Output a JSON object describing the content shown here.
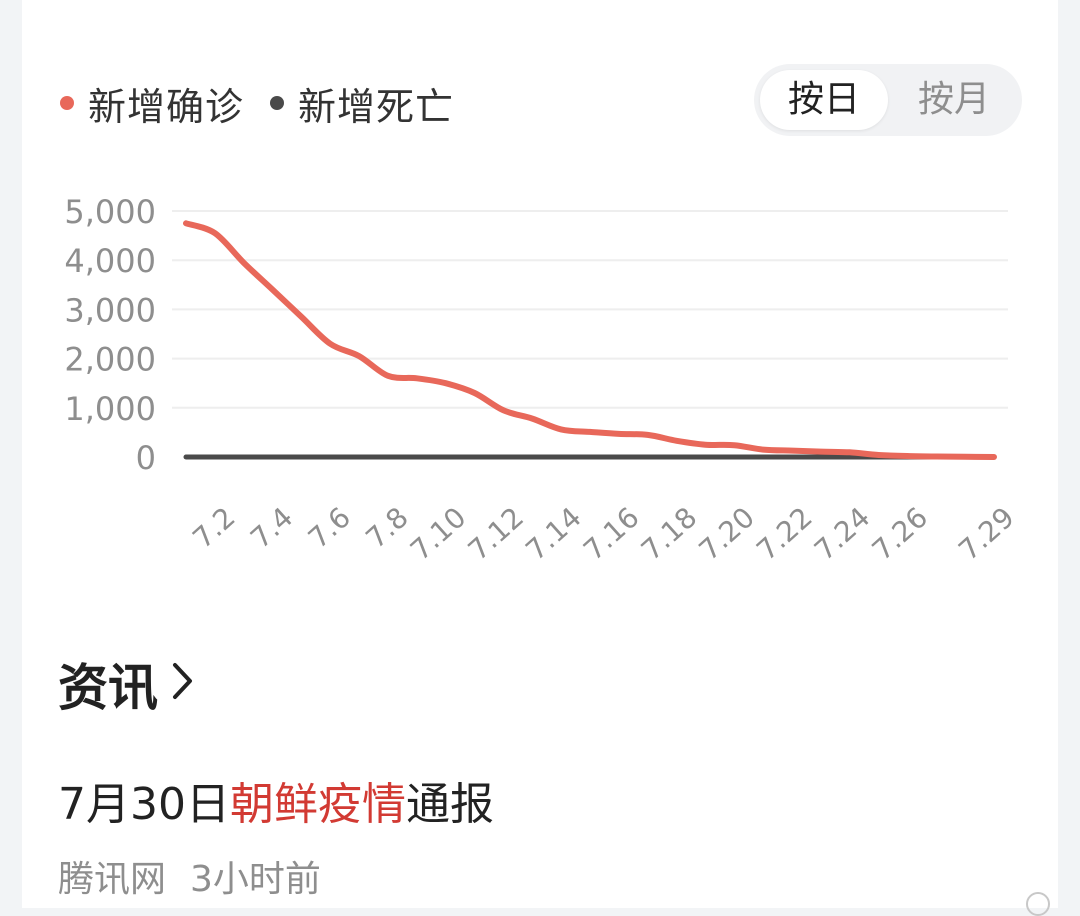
{
  "legend": [
    {
      "label": "新增确诊",
      "color": "#e8685a"
    },
    {
      "label": "新增死亡",
      "color": "#4a4a4a"
    }
  ],
  "toggle": {
    "active_label": "按日",
    "inactive_label": "按月"
  },
  "chart_data": {
    "type": "line",
    "x": [
      "7.1",
      "7.2",
      "7.3",
      "7.4",
      "7.5",
      "7.6",
      "7.7",
      "7.8",
      "7.9",
      "7.10",
      "7.11",
      "7.12",
      "7.13",
      "7.14",
      "7.15",
      "7.16",
      "7.17",
      "7.18",
      "7.19",
      "7.20",
      "7.21",
      "7.22",
      "7.23",
      "7.24",
      "7.25",
      "7.26",
      "7.27",
      "7.28",
      "7.29"
    ],
    "x_tick_labels": [
      "7.2",
      "7.4",
      "7.6",
      "7.8",
      "7.10",
      "7.12",
      "7.14",
      "7.16",
      "7.18",
      "7.20",
      "7.22",
      "7.24",
      "7.26",
      "7.29"
    ],
    "yticks": [
      "0",
      "1,000",
      "2,000",
      "3,000",
      "4,000",
      "5,000"
    ],
    "ylim": [
      0,
      5000
    ],
    "series": [
      {
        "name": "新增确诊",
        "color": "#e8685a",
        "values": [
          4750,
          4550,
          3950,
          3400,
          2850,
          2300,
          2050,
          1650,
          1600,
          1500,
          1300,
          950,
          780,
          560,
          510,
          470,
          450,
          330,
          250,
          240,
          150,
          130,
          110,
          95,
          40,
          20,
          10,
          5,
          0
        ]
      },
      {
        "name": "新增死亡",
        "color": "#4a4a4a",
        "values": [
          0,
          0,
          0,
          0,
          0,
          0,
          0,
          0,
          0,
          0,
          0,
          0,
          0,
          0,
          0,
          0,
          0,
          0,
          0,
          0,
          0,
          0,
          0,
          0,
          0,
          0,
          0,
          0,
          0
        ]
      }
    ]
  },
  "section": {
    "title": "资讯"
  },
  "news": {
    "title_pre": "7月30日",
    "title_highlight": "朝鲜疫情",
    "title_post": "通报",
    "source": "腾讯网",
    "time": "3小时前"
  }
}
